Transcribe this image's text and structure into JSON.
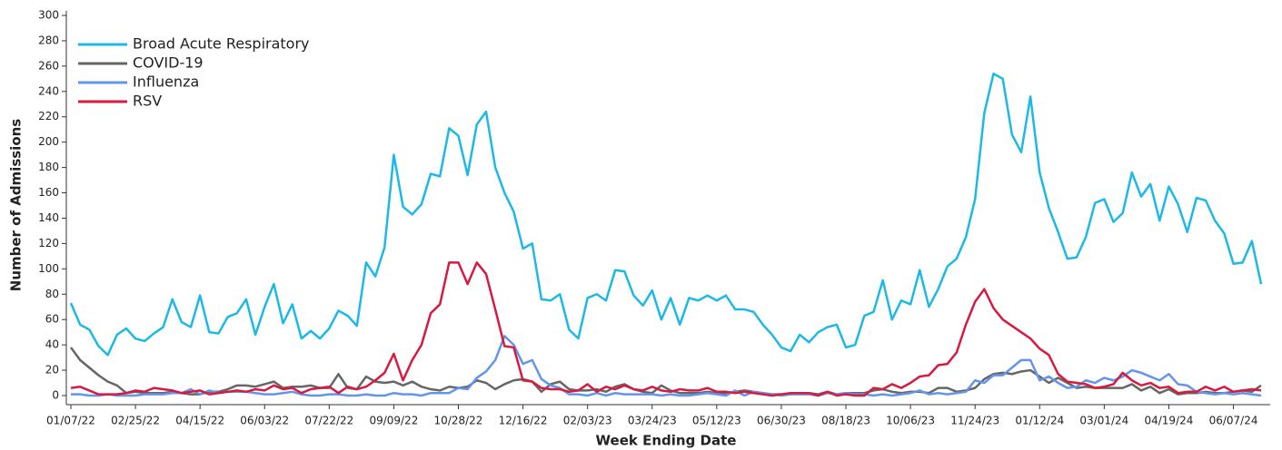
{
  "chart_data": {
    "type": "line",
    "x_label": "Week Ending Date",
    "y_label": "Number of Admissions",
    "legend": "upper left",
    "ylim": [
      0,
      300
    ],
    "yticks": [
      0,
      20,
      40,
      60,
      80,
      100,
      120,
      140,
      160,
      180,
      200,
      220,
      240,
      260,
      280,
      300
    ],
    "categories": [
      "01/07/22",
      null,
      null,
      null,
      null,
      null,
      null,
      "02/25/22",
      null,
      null,
      null,
      null,
      null,
      null,
      "04/15/22",
      null,
      null,
      null,
      null,
      null,
      null,
      "06/03/22",
      null,
      null,
      null,
      null,
      null,
      null,
      "07/22/22",
      null,
      null,
      null,
      null,
      null,
      null,
      "09/09/22",
      null,
      null,
      null,
      null,
      null,
      null,
      "10/28/22",
      null,
      null,
      null,
      null,
      null,
      null,
      "12/16/22",
      null,
      null,
      null,
      null,
      null,
      null,
      "02/03/23",
      null,
      null,
      null,
      null,
      null,
      null,
      "03/24/23",
      null,
      null,
      null,
      null,
      null,
      null,
      "05/12/23",
      null,
      null,
      null,
      null,
      null,
      null,
      "06/30/23",
      null,
      null,
      null,
      null,
      null,
      null,
      "08/18/23",
      null,
      null,
      null,
      null,
      null,
      null,
      "10/06/23",
      null,
      null,
      null,
      null,
      null,
      null,
      "11/24/23",
      null,
      null,
      null,
      null,
      null,
      null,
      "01/12/24",
      null,
      null,
      null,
      null,
      null,
      null,
      "03/01/24",
      null,
      null,
      null,
      null,
      null,
      null,
      "04/19/24",
      null,
      null,
      null,
      null,
      null,
      null,
      "06/07/24",
      null,
      null,
      null
    ],
    "series": [
      {
        "name": "Broad Acute Respiratory",
        "color": "#1cb9e6",
        "values": [
          73,
          56,
          52,
          39,
          32,
          48,
          53,
          45,
          43,
          49,
          54,
          76,
          58,
          54,
          79,
          50,
          49,
          62,
          65,
          76,
          48,
          70,
          88,
          57,
          72,
          45,
          51,
          45,
          53,
          67,
          63,
          55,
          105,
          94,
          117,
          190,
          149,
          143,
          151,
          175,
          173,
          211,
          205,
          174,
          214,
          224,
          180,
          160,
          145,
          116,
          120,
          76,
          75,
          80,
          52,
          45,
          77,
          80,
          75,
          99,
          98,
          79,
          71,
          83,
          60,
          77,
          56,
          77,
          75,
          79,
          75,
          79,
          68,
          68,
          66,
          56,
          48,
          38,
          35,
          48,
          42,
          50,
          54,
          56,
          38,
          40,
          63,
          66,
          91,
          60,
          75,
          72,
          99,
          70,
          84,
          102,
          108,
          125,
          155,
          223,
          254,
          250,
          206,
          192,
          236,
          176,
          148,
          129,
          108,
          109,
          125,
          152,
          155,
          137,
          144,
          176,
          157,
          167,
          138,
          165,
          151,
          129,
          156,
          154,
          138,
          128,
          104,
          105,
          122,
          88
        ]
      },
      {
        "name": "COVID-19",
        "color": "#666666",
        "values": [
          38,
          28,
          22,
          16,
          11,
          8,
          2,
          3,
          2,
          2,
          2,
          3,
          2,
          1,
          1,
          3,
          3,
          5,
          8,
          8,
          7,
          9,
          11,
          6,
          7,
          7,
          8,
          6,
          6,
          17,
          6,
          5,
          15,
          11,
          10,
          11,
          8,
          11,
          7,
          5,
          4,
          7,
          6,
          7,
          12,
          10,
          5,
          9,
          12,
          13,
          11,
          3,
          9,
          11,
          5,
          4,
          4,
          5,
          3,
          7,
          9,
          5,
          3,
          2,
          8,
          4,
          2,
          2,
          2,
          3,
          2,
          2,
          3,
          4,
          3,
          2,
          1,
          1,
          1,
          2,
          2,
          1,
          3,
          1,
          2,
          2,
          2,
          4,
          5,
          3,
          2,
          3,
          3,
          2,
          6,
          6,
          3,
          4,
          6,
          13,
          17,
          18,
          17,
          19,
          20,
          15,
          10,
          14,
          10,
          6,
          7,
          6,
          6,
          6,
          6,
          9,
          4,
          7,
          2,
          5,
          1,
          2,
          2,
          3,
          2,
          2,
          3,
          4,
          3,
          8
        ]
      },
      {
        "name": "Influenza",
        "color": "#6495ed",
        "values": [
          1,
          1,
          0,
          0,
          1,
          0,
          0,
          0,
          1,
          1,
          1,
          2,
          2,
          5,
          1,
          4,
          2,
          3,
          3,
          3,
          2,
          1,
          1,
          2,
          3,
          1,
          0,
          0,
          1,
          1,
          0,
          0,
          1,
          0,
          0,
          2,
          1,
          1,
          0,
          2,
          2,
          2,
          6,
          5,
          14,
          19,
          28,
          47,
          40,
          25,
          28,
          13,
          8,
          6,
          1,
          1,
          0,
          2,
          0,
          2,
          1,
          1,
          1,
          1,
          0,
          1,
          0,
          0,
          1,
          2,
          1,
          0,
          4,
          0,
          3,
          2,
          1,
          0,
          1,
          1,
          1,
          0,
          2,
          1,
          2,
          1,
          1,
          0,
          1,
          0,
          1,
          2,
          4,
          1,
          2,
          1,
          2,
          3,
          12,
          10,
          16,
          16,
          22,
          28,
          28,
          12,
          15,
          10,
          6,
          7,
          12,
          10,
          14,
          12,
          15,
          20,
          18,
          15,
          12,
          17,
          9,
          8,
          3,
          2,
          1,
          2,
          1,
          2,
          1,
          0
        ]
      },
      {
        "name": "RSV",
        "color": "#d61a40",
        "values": [
          6,
          7,
          4,
          1,
          1,
          1,
          2,
          4,
          3,
          6,
          5,
          4,
          2,
          3,
          4,
          1,
          2,
          3,
          4,
          3,
          5,
          4,
          8,
          5,
          6,
          2,
          5,
          6,
          7,
          2,
          7,
          5,
          7,
          12,
          18,
          33,
          12,
          28,
          40,
          65,
          72,
          105,
          105,
          88,
          105,
          96,
          68,
          39,
          38,
          12,
          11,
          6,
          5,
          5,
          3,
          4,
          9,
          3,
          7,
          5,
          8,
          5,
          4,
          7,
          4,
          3,
          5,
          4,
          4,
          6,
          3,
          3,
          2,
          3,
          2,
          1,
          0,
          1,
          2,
          2,
          2,
          0,
          3,
          0,
          1,
          0,
          0,
          6,
          5,
          9,
          6,
          10,
          15,
          16,
          24,
          25,
          34,
          56,
          74,
          84,
          69,
          60,
          55,
          50,
          45,
          37,
          32,
          17,
          11,
          10,
          9,
          6,
          7,
          9,
          18,
          12,
          8,
          10,
          6,
          7,
          2,
          3,
          3,
          7,
          4,
          7,
          3,
          4,
          5,
          4
        ]
      }
    ]
  }
}
